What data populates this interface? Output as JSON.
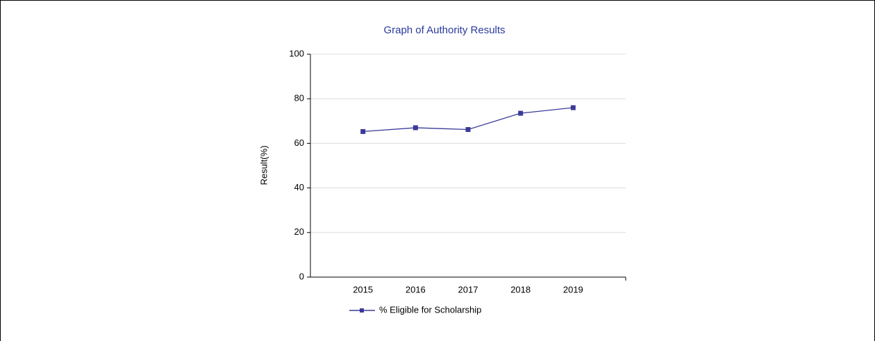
{
  "chart_data": {
    "type": "line",
    "title": "Graph of Authority Results",
    "categories": [
      "2015",
      "2016",
      "2017",
      "2018",
      "2019"
    ],
    "series": [
      {
        "name": "% Eligible for Scholarship",
        "color": "#3a3a9a",
        "values": [
          65.3,
          67,
          66.2,
          73.5,
          76
        ]
      }
    ],
    "y_label": "Result(%)",
    "ylim": [
      0,
      100
    ],
    "yticks": [
      0,
      20,
      40,
      60,
      80,
      100
    ],
    "grid": true
  }
}
